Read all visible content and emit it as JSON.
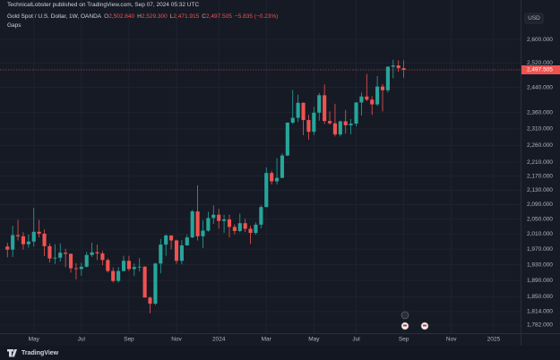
{
  "header": {
    "published": "TechnicalLobster published on TradingView.com, Sep 07, 2024 05:32 UTC",
    "symbol": "Gold Spot / U.S. Dollar, 1W, OANDA",
    "ohlc": [
      {
        "key": "O",
        "value": "2,502.840"
      },
      {
        "key": "H",
        "value": "2,529.300"
      },
      {
        "key": "L",
        "value": "2,471.915"
      },
      {
        "key": "C",
        "value": "2,497.505"
      }
    ],
    "change": "−5.835 (−0.23%)",
    "indicator": "Gaps",
    "currency": "USD",
    "brand": "TradingView"
  },
  "chart_data": {
    "type": "candlestick",
    "log_scale": true,
    "grid": true,
    "up_color": "#26a69a",
    "down_color": "#ef5350",
    "xlim": [
      -1.4,
      96.6
    ],
    "xticks": [
      {
        "value": 5,
        "label": "May"
      },
      {
        "value": 14,
        "label": "Jul"
      },
      {
        "value": 23,
        "label": "Sep"
      },
      {
        "value": 32,
        "label": "Nov"
      },
      {
        "value": 40,
        "label": "2024"
      },
      {
        "value": 49,
        "label": "Mar"
      },
      {
        "value": 58,
        "label": "May"
      },
      {
        "value": 66,
        "label": "Jul"
      },
      {
        "value": 75,
        "label": "Sep"
      },
      {
        "value": 84,
        "label": "Nov"
      },
      {
        "value": 92,
        "label": "2025"
      }
    ],
    "ylim": [
      1763,
      2691
    ],
    "yticks": [
      {
        "value": 1782,
        "label": "1,782.000"
      },
      {
        "value": 1814,
        "label": "1,814.000"
      },
      {
        "value": 1850,
        "label": "1,850.000"
      },
      {
        "value": 1890,
        "label": "1,890.000"
      },
      {
        "value": 1930,
        "label": "1,930.000"
      },
      {
        "value": 1970,
        "label": "1,970.000"
      },
      {
        "value": 2010,
        "label": "2,010.000"
      },
      {
        "value": 2050,
        "label": "2,050.000"
      },
      {
        "value": 2090,
        "label": "2,090.000"
      },
      {
        "value": 2130,
        "label": "2,130.000"
      },
      {
        "value": 2170,
        "label": "2,170.000"
      },
      {
        "value": 2210,
        "label": "2,210.000"
      },
      {
        "value": 2260,
        "label": "2,260.000"
      },
      {
        "value": 2310,
        "label": "2,310.000"
      },
      {
        "value": 2360,
        "label": "2,360.000"
      },
      {
        "value": 2440,
        "label": "2,440.000"
      },
      {
        "value": 2520,
        "label": "2,520.000"
      },
      {
        "value": 2600,
        "label": "2,600.000"
      }
    ],
    "last_price": {
      "value": 2497.505,
      "label": "2,497.505",
      "color": "#ef5350"
    },
    "open": [
      1977,
      1969,
      2007,
      2004,
      1983,
      1990,
      2016,
      2011,
      1978,
      1946,
      1948,
      1961,
      1958,
      1921,
      1919,
      1925,
      1955,
      1962,
      1959,
      1942,
      1914,
      1889,
      1914,
      1940,
      1919,
      1924,
      1925,
      1848,
      1833,
      1933,
      1982,
      2006,
      1993,
      1940,
      1980,
      2001,
      2071,
      2004,
      2019,
      2053,
      2062,
      2045,
      2049,
      2029,
      2018,
      2039,
      2024,
      2013,
      2035,
      2083,
      2179,
      2155,
      2165,
      2230,
      2329,
      2344,
      2391,
      2337,
      2301,
      2360,
      2415,
      2334,
      2327,
      2293,
      2333,
      2321,
      2326,
      2392,
      2411,
      2401,
      2386,
      2443,
      2431,
      2508,
      2512,
      2502.84
    ],
    "high": [
      1987,
      2032,
      2048,
      2015,
      2009,
      2081,
      2048,
      2022,
      1985,
      1983,
      1985,
      1971,
      1959,
      1934,
      1935,
      1963,
      1987,
      1982,
      1965,
      1946,
      1923,
      1924,
      1953,
      1953,
      1933,
      1947,
      1926,
      1850,
      1935,
      1997,
      2009,
      2007,
      1995,
      1994,
      2008,
      2075,
      2144,
      2047,
      2070,
      2088,
      2078,
      2062,
      2062,
      2036,
      2065,
      2051,
      2032,
      2041,
      2088,
      2195,
      2185,
      2222,
      2236,
      2330,
      2432,
      2417,
      2392,
      2353,
      2378,
      2422,
      2450,
      2364,
      2388,
      2335,
      2368,
      2340,
      2393,
      2424,
      2484,
      2412,
      2477,
      2451,
      2509,
      2531,
      2529,
      2529.3
    ],
    "low": [
      1949,
      1950,
      1993,
      1969,
      1974,
      1977,
      2001,
      1952,
      1936,
      1932,
      1938,
      1924,
      1910,
      1893,
      1902,
      1923,
      1950,
      1942,
      1929,
      1910,
      1885,
      1885,
      1913,
      1914,
      1901,
      1913,
      1857,
      1810,
      1830,
      1908,
      1953,
      1970,
      1932,
      1931,
      1979,
      1999,
      1993,
      1973,
      2016,
      2037,
      2024,
      2013,
      2001,
      2009,
      2015,
      2015,
      1984,
      2008,
      2025,
      2082,
      2146,
      2146,
      2164,
      2228,
      2325,
      2331,
      2291,
      2277,
      2291,
      2335,
      2325,
      2323,
      2287,
      2287,
      2295,
      2293,
      2318,
      2351,
      2396,
      2353,
      2381,
      2364,
      2423,
      2470,
      2491,
      2471.915
    ],
    "close": [
      1969,
      2007,
      2004,
      1983,
      1990,
      2016,
      2011,
      1978,
      1946,
      1948,
      1961,
      1958,
      1921,
      1919,
      1925,
      1955,
      1962,
      1959,
      1942,
      1914,
      1889,
      1914,
      1940,
      1919,
      1924,
      1925,
      1848,
      1833,
      1933,
      1982,
      2006,
      1993,
      1940,
      1980,
      2001,
      2071,
      2004,
      2019,
      2053,
      2062,
      2045,
      2049,
      2029,
      2018,
      2039,
      2024,
      2013,
      2035,
      2083,
      2179,
      2155,
      2165,
      2230,
      2329,
      2344,
      2391,
      2337,
      2301,
      2360,
      2415,
      2334,
      2327,
      2293,
      2333,
      2321,
      2326,
      2392,
      2411,
      2401,
      2386,
      2443,
      2431,
      2508,
      2512,
      2503,
      2497.505
    ]
  }
}
